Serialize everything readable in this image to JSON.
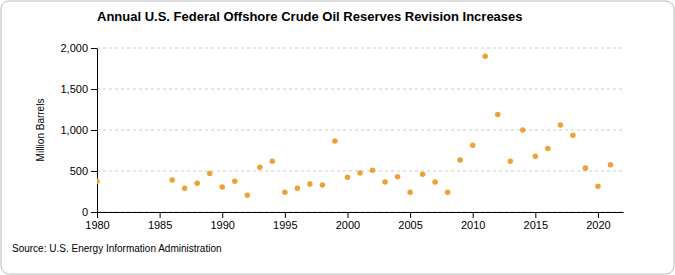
{
  "chart_data": {
    "type": "scatter",
    "title": "Annual U.S. Federal Offshore Crude Oil Reserves Revision Increases",
    "y_label": "Million Barrels",
    "source": "Source: U.S. Energy Information Administration",
    "x": [
      1980,
      1986,
      1987,
      1988,
      1989,
      1990,
      1991,
      1992,
      1993,
      1994,
      1995,
      1996,
      1997,
      1998,
      1999,
      2000,
      2001,
      2002,
      2003,
      2004,
      2005,
      2006,
      2007,
      2008,
      2009,
      2010,
      2011,
      2012,
      2013,
      2014,
      2015,
      2016,
      2017,
      2018,
      2019,
      2020,
      2021
    ],
    "values": [
      375,
      390,
      290,
      350,
      470,
      305,
      375,
      205,
      545,
      620,
      240,
      290,
      340,
      330,
      865,
      425,
      475,
      510,
      365,
      430,
      240,
      460,
      365,
      240,
      635,
      815,
      1900,
      1190,
      620,
      1000,
      680,
      775,
      1060,
      935,
      535,
      315,
      575
    ],
    "color": "#eea236",
    "marker": "circle",
    "xlim": [
      1980,
      2022
    ],
    "xticks": [
      1980,
      1985,
      1990,
      1995,
      2000,
      2005,
      2010,
      2015,
      2020
    ],
    "ylim": [
      0,
      2000
    ],
    "yticks": [
      0,
      500,
      {
        "value": 1000,
        "label": "1,000"
      },
      {
        "value": 1500,
        "label": "1,500"
      },
      {
        "value": 2000,
        "label": "2,000"
      }
    ],
    "grid": true
  }
}
